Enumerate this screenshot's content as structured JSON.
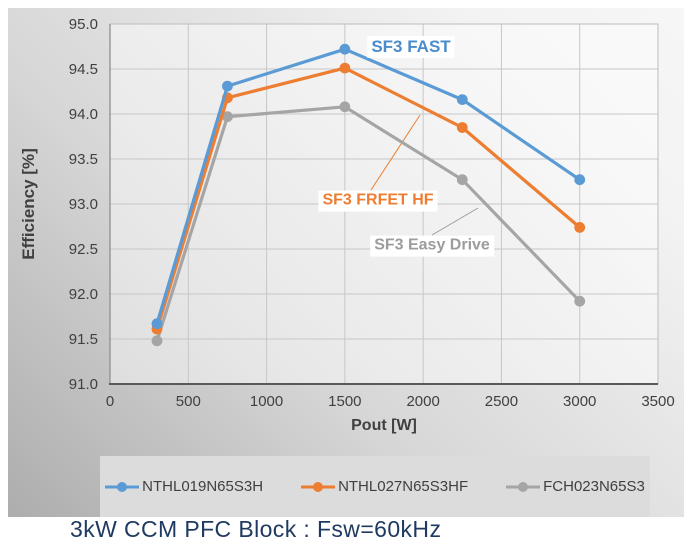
{
  "figure": {
    "caption": "3kW CCM PFC Block : Fsw=60kHz",
    "caption_color": "#1f3a60",
    "legend_bg": "#dcdcdc"
  },
  "chart_data": {
    "type": "line",
    "title": "",
    "xlabel": "Pout [W]",
    "ylabel": "Efficiency [%]",
    "x": [
      300,
      750,
      1500,
      2250,
      3000
    ],
    "series": [
      {
        "name": "NTHL019N65S3H",
        "color": "#5b9bd5",
        "values": [
          91.67,
          94.31,
          94.72,
          94.16,
          93.27
        ]
      },
      {
        "name": "NTHL027N65S3HF",
        "color": "#ed7d31",
        "values": [
          91.61,
          94.18,
          94.51,
          93.85,
          92.74
        ]
      },
      {
        "name": "FCH023N65S3",
        "color": "#a5a5a5",
        "values": [
          91.48,
          93.97,
          94.08,
          93.27,
          91.92
        ]
      }
    ],
    "xlim": [
      0,
      3500
    ],
    "ylim": [
      91.0,
      95.0
    ],
    "x_ticks": [
      0,
      500,
      1000,
      1500,
      2000,
      2500,
      3000,
      3500
    ],
    "y_tick_step": 0.5,
    "grid": true,
    "legend_position": "bottom",
    "axis_text_color": "#404040",
    "gridline_color": "#c7c7c7",
    "annotations": [
      {
        "label": "SF3 FAST",
        "color": "#4a8bca"
      },
      {
        "label": "SF3 FRFET HF",
        "color": "#ed7d31"
      },
      {
        "label": "SF3 Easy Drive",
        "color": "#9c9c9c"
      }
    ]
  }
}
